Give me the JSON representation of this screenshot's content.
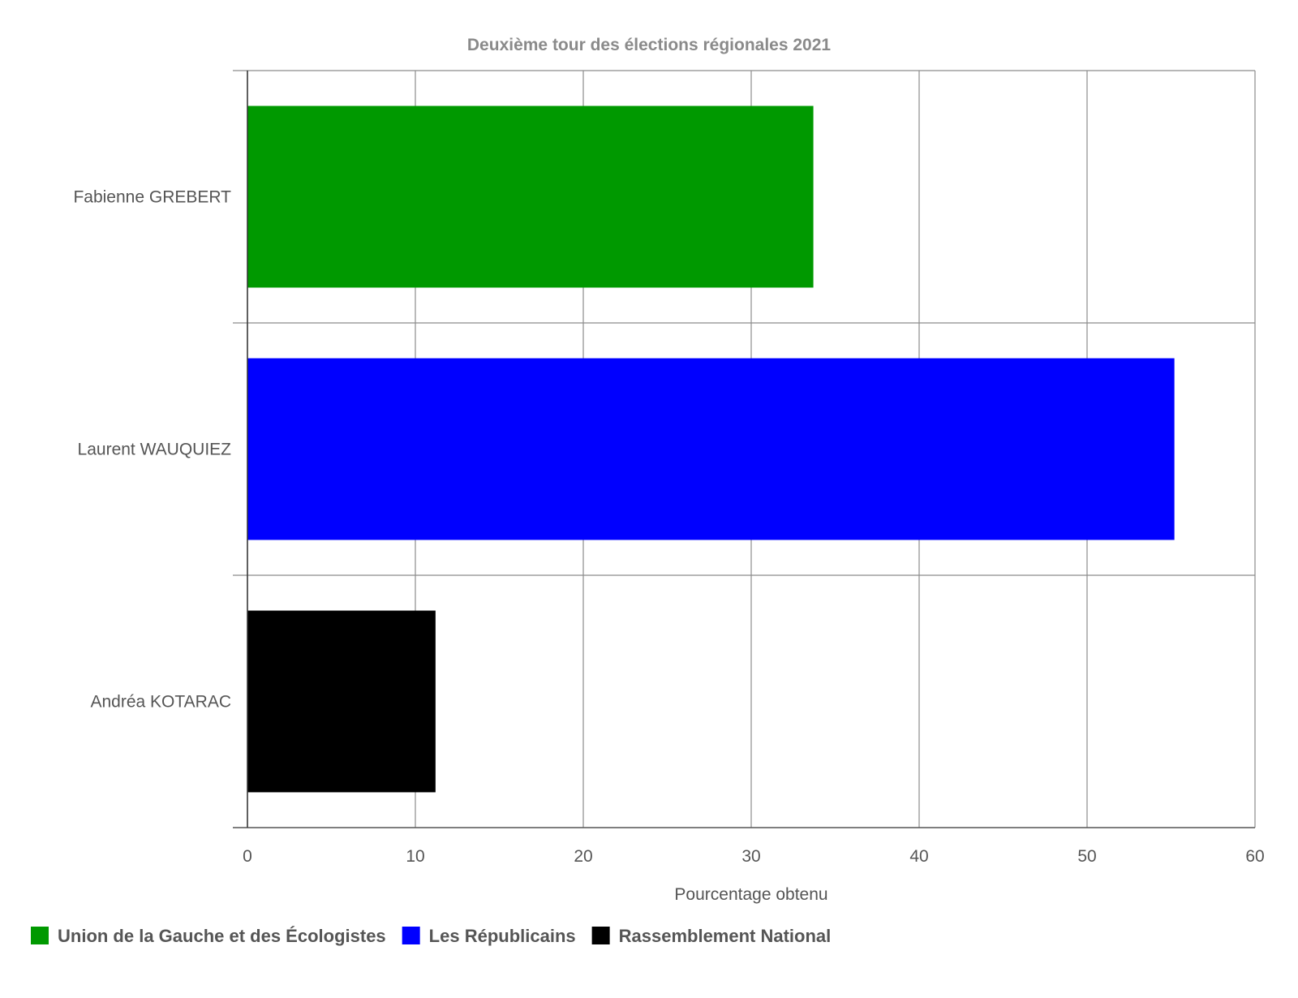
{
  "chart_data": {
    "type": "bar",
    "orientation": "horizontal",
    "title": "Deuxième tour des élections régionales 2021",
    "xlabel": "Pourcentage obtenu",
    "ylabel": "",
    "xlim": [
      0,
      60
    ],
    "xticks": [
      0,
      10,
      20,
      30,
      40,
      50,
      60
    ],
    "grid": true,
    "legend_position": "bottom-left",
    "categories": [
      "Fabienne GREBERT",
      "Laurent WAUQUIEZ",
      "Andréa KOTARAC"
    ],
    "values": [
      33.7,
      55.2,
      11.2
    ],
    "colors": [
      "#009900",
      "#0000ff",
      "#000000"
    ],
    "legend": [
      {
        "label": "Union de la Gauche et des Écologistes",
        "color": "#009900"
      },
      {
        "label": "Les Républicains",
        "color": "#0000ff"
      },
      {
        "label": "Rassemblement National",
        "color": "#000000"
      }
    ]
  }
}
